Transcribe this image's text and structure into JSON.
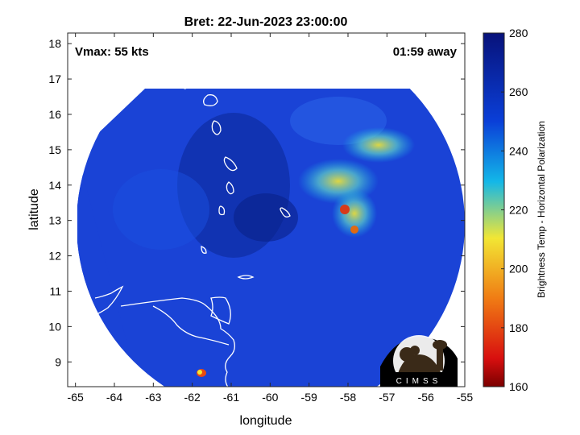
{
  "title": "Bret: 22-Jun-2023 23:00:00",
  "annotations": {
    "vmax": "Vmax: 55 kts",
    "time_away": "01:59 away"
  },
  "x_axis": {
    "label": "longitude",
    "ticks": [
      "-65",
      "-64",
      "-63",
      "-62",
      "-61",
      "-60",
      "-59",
      "-58",
      "-57",
      "-56",
      "-55"
    ]
  },
  "y_axis": {
    "label": "latitude",
    "ticks": [
      "18",
      "17",
      "16",
      "15",
      "14",
      "13",
      "12",
      "11",
      "10",
      "9"
    ]
  },
  "colorbar": {
    "label": "Brightness Temp - Horizontal Polarization",
    "ticks": [
      "280",
      "260",
      "240",
      "220",
      "200",
      "180",
      "160"
    ],
    "colors": [
      "#08127a",
      "#0a3fd8",
      "#13b7e8",
      "#f2e634",
      "#f07c14",
      "#d80f0f",
      "#7a0000"
    ]
  },
  "logo": {
    "text": "CIMSS"
  },
  "chart_data": {
    "type": "heatmap",
    "title": "Bret: 22-Jun-2023 23:00:00",
    "xlabel": "longitude",
    "ylabel": "latitude",
    "xlim": [
      -65.2,
      -55
    ],
    "ylim": [
      8.3,
      18.3
    ],
    "colorbar_range": [
      160,
      280
    ],
    "colorbar_label": "Brightness Temp - Horizontal Polarization"
  }
}
